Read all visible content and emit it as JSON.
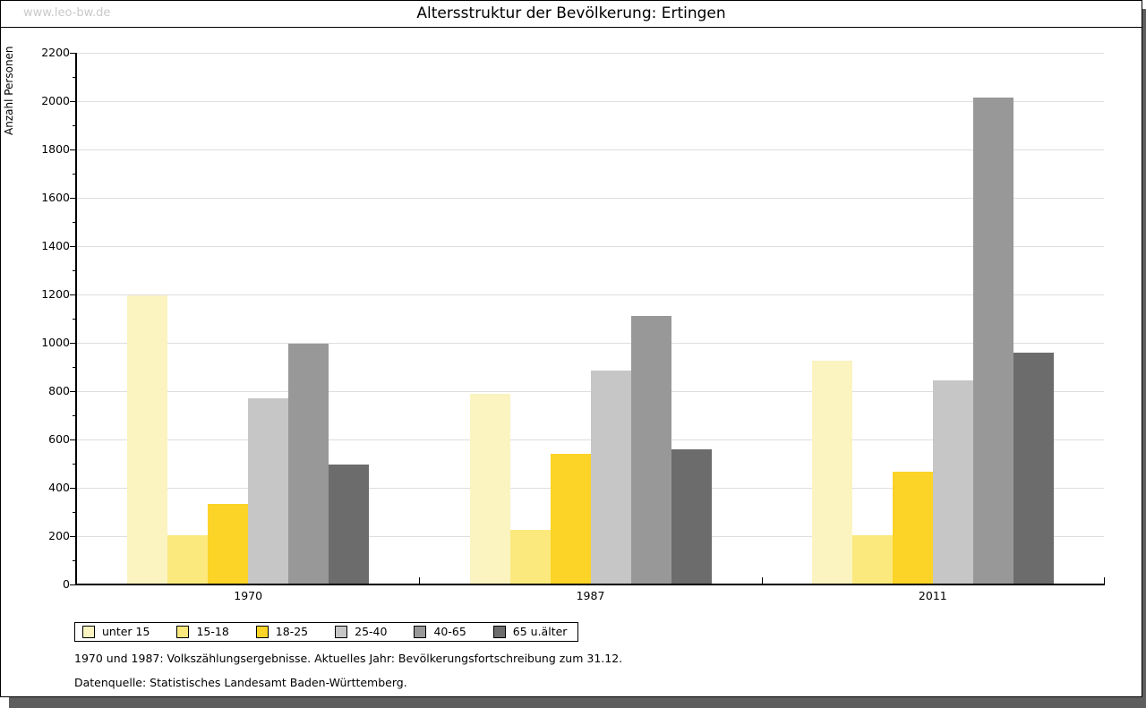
{
  "watermark": "www.leo-bw.de",
  "title": "Altersstruktur der Bevölkerung: Ertingen",
  "chart_data": {
    "type": "bar",
    "title": "Altersstruktur der Bevölkerung: Ertingen",
    "ylabel": "Anzahl Personen",
    "xlabel": "",
    "categories": [
      "1970",
      "1987",
      "2011"
    ],
    "series": [
      {
        "name": "unter 15",
        "color": "#FBF3C0",
        "values": [
          1195,
          790,
          925
        ]
      },
      {
        "name": "15-18",
        "color": "#FBE97E",
        "values": [
          205,
          225,
          205
        ]
      },
      {
        "name": "18-25",
        "color": "#FCD327",
        "values": [
          335,
          540,
          465
        ]
      },
      {
        "name": "25-40",
        "color": "#C6C6C6",
        "values": [
          770,
          885,
          845
        ]
      },
      {
        "name": "40-65",
        "color": "#989898",
        "values": [
          995,
          1110,
          2015
        ]
      },
      {
        "name": "65 u.älter",
        "color": "#6C6C6C",
        "values": [
          495,
          560,
          960
        ]
      }
    ],
    "ylim": [
      0,
      2200
    ],
    "ytick_step": 200,
    "yminor_step": 100,
    "grid": true,
    "legend_position": "bottom-left"
  },
  "footer": {
    "line1": "1970 und 1987: Volkszählungsergebnisse. Aktuelles Jahr: Bevölkerungsfortschreibung zum 31.12.",
    "line2": "Datenquelle: Statistisches Landesamt Baden-Württemberg."
  }
}
